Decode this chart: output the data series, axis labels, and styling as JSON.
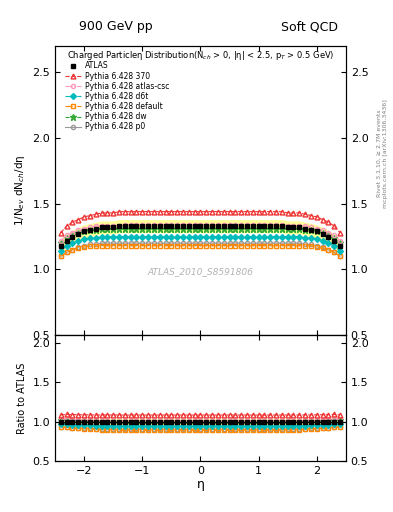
{
  "title_left": "900 GeV pp",
  "title_right": "Soft QCD",
  "right_label1": "Rivet 3.1.10, ≥ 2.7M events",
  "right_label2": "mcplots.cern.ch [arXiv:1306.3436]",
  "plot_title": "Charged Particleη Distribution(N$_{ch}$ > 0, |η| < 2.5, p$_T$ > 0.5 GeV)",
  "watermark": "ATLAS_2010_S8591806",
  "ylabel_main": "1/N$_{ev}$ dN$_{ch}$/dη",
  "ylabel_ratio": "Ratio to ATLAS",
  "xlabel": "η",
  "xlim": [
    -2.5,
    2.5
  ],
  "ylim_main": [
    0.5,
    2.7
  ],
  "ylim_ratio": [
    0.5,
    2.1
  ],
  "yticks_main": [
    0.5,
    1.0,
    1.5,
    2.0,
    2.5
  ],
  "yticks_ratio": [
    0.5,
    1.0,
    1.5,
    2.0
  ],
  "xticks": [
    -2,
    -1,
    0,
    1,
    2
  ],
  "series": {
    "ATLAS": {
      "color": "black",
      "marker": "s",
      "markersize": 3.5,
      "linestyle": "none",
      "filled": true,
      "zorder": 10
    },
    "Pythia 6.428 370": {
      "color": "#ee3333",
      "marker": "^",
      "markersize": 3.5,
      "linestyle": "--",
      "filled": false,
      "zorder": 6
    },
    "Pythia 6.428 atlas-csc": {
      "color": "#ff99bb",
      "marker": "o",
      "markersize": 3,
      "linestyle": "-.",
      "filled": false,
      "zorder": 5
    },
    "Pythia 6.428 d6t": {
      "color": "#00bbbb",
      "marker": "D",
      "markersize": 3,
      "linestyle": "-.",
      "filled": true,
      "zorder": 4
    },
    "Pythia 6.428 default": {
      "color": "#ff8800",
      "marker": "s",
      "markersize": 3,
      "linestyle": "-.",
      "filled": false,
      "zorder": 3
    },
    "Pythia 6.428 dw": {
      "color": "#33aa33",
      "marker": "*",
      "markersize": 4.5,
      "linestyle": "--",
      "filled": true,
      "zorder": 2
    },
    "Pythia 6.428 p0": {
      "color": "#999999",
      "marker": "o",
      "markersize": 3,
      "linestyle": "-",
      "filled": false,
      "zorder": 1
    }
  },
  "eta_atlas": [
    -2.4,
    -2.3,
    -2.2,
    -2.1,
    -2.0,
    -1.9,
    -1.8,
    -1.7,
    -1.6,
    -1.5,
    -1.4,
    -1.3,
    -1.2,
    -1.1,
    -1.0,
    -0.9,
    -0.8,
    -0.7,
    -0.6,
    -0.5,
    -0.4,
    -0.3,
    -0.2,
    -0.1,
    0.0,
    0.1,
    0.2,
    0.3,
    0.4,
    0.5,
    0.6,
    0.7,
    0.8,
    0.9,
    1.0,
    1.1,
    1.2,
    1.3,
    1.4,
    1.5,
    1.6,
    1.7,
    1.8,
    1.9,
    2.0,
    2.1,
    2.2,
    2.3,
    2.4
  ],
  "val_atlas": [
    1.18,
    1.22,
    1.25,
    1.27,
    1.29,
    1.3,
    1.31,
    1.32,
    1.32,
    1.32,
    1.33,
    1.33,
    1.33,
    1.33,
    1.33,
    1.33,
    1.33,
    1.33,
    1.33,
    1.33,
    1.33,
    1.33,
    1.33,
    1.33,
    1.33,
    1.33,
    1.33,
    1.33,
    1.33,
    1.33,
    1.33,
    1.33,
    1.33,
    1.33,
    1.33,
    1.33,
    1.33,
    1.33,
    1.33,
    1.32,
    1.32,
    1.32,
    1.31,
    1.3,
    1.29,
    1.27,
    1.25,
    1.22,
    1.18
  ],
  "err_atlas": [
    0.05,
    0.05,
    0.05,
    0.05,
    0.05,
    0.05,
    0.05,
    0.05,
    0.05,
    0.05,
    0.05,
    0.05,
    0.05,
    0.05,
    0.05,
    0.05,
    0.05,
    0.05,
    0.05,
    0.05,
    0.05,
    0.05,
    0.05,
    0.05,
    0.05,
    0.05,
    0.05,
    0.05,
    0.05,
    0.05,
    0.05,
    0.05,
    0.05,
    0.05,
    0.05,
    0.05,
    0.05,
    0.05,
    0.05,
    0.05,
    0.05,
    0.05,
    0.05,
    0.05,
    0.05,
    0.05,
    0.05,
    0.05,
    0.05
  ],
  "val_370": [
    1.28,
    1.33,
    1.36,
    1.38,
    1.4,
    1.41,
    1.42,
    1.43,
    1.43,
    1.43,
    1.44,
    1.44,
    1.44,
    1.44,
    1.44,
    1.44,
    1.44,
    1.44,
    1.44,
    1.44,
    1.44,
    1.44,
    1.44,
    1.44,
    1.44,
    1.44,
    1.44,
    1.44,
    1.44,
    1.44,
    1.44,
    1.44,
    1.44,
    1.44,
    1.44,
    1.44,
    1.44,
    1.44,
    1.44,
    1.43,
    1.43,
    1.43,
    1.42,
    1.41,
    1.4,
    1.38,
    1.36,
    1.33,
    1.28
  ],
  "val_atlascsc": [
    1.22,
    1.26,
    1.28,
    1.3,
    1.31,
    1.32,
    1.33,
    1.33,
    1.33,
    1.33,
    1.33,
    1.34,
    1.34,
    1.34,
    1.34,
    1.34,
    1.34,
    1.34,
    1.34,
    1.34,
    1.34,
    1.34,
    1.34,
    1.34,
    1.34,
    1.34,
    1.34,
    1.34,
    1.34,
    1.34,
    1.34,
    1.34,
    1.34,
    1.34,
    1.34,
    1.34,
    1.34,
    1.34,
    1.34,
    1.33,
    1.33,
    1.33,
    1.33,
    1.32,
    1.31,
    1.3,
    1.28,
    1.26,
    1.22
  ],
  "val_d6t": [
    1.14,
    1.18,
    1.2,
    1.22,
    1.23,
    1.24,
    1.24,
    1.25,
    1.25,
    1.25,
    1.25,
    1.25,
    1.25,
    1.25,
    1.25,
    1.25,
    1.25,
    1.25,
    1.25,
    1.25,
    1.25,
    1.25,
    1.25,
    1.25,
    1.25,
    1.25,
    1.25,
    1.25,
    1.25,
    1.25,
    1.25,
    1.25,
    1.25,
    1.25,
    1.25,
    1.25,
    1.25,
    1.25,
    1.25,
    1.25,
    1.25,
    1.25,
    1.24,
    1.24,
    1.23,
    1.22,
    1.2,
    1.18,
    1.14
  ],
  "val_default": [
    1.1,
    1.13,
    1.15,
    1.16,
    1.17,
    1.18,
    1.18,
    1.18,
    1.18,
    1.18,
    1.18,
    1.18,
    1.18,
    1.18,
    1.18,
    1.18,
    1.18,
    1.18,
    1.18,
    1.18,
    1.18,
    1.18,
    1.18,
    1.18,
    1.18,
    1.18,
    1.18,
    1.18,
    1.18,
    1.18,
    1.18,
    1.18,
    1.18,
    1.18,
    1.18,
    1.18,
    1.18,
    1.18,
    1.18,
    1.18,
    1.18,
    1.18,
    1.18,
    1.18,
    1.17,
    1.16,
    1.15,
    1.13,
    1.1
  ],
  "val_dw": [
    1.2,
    1.24,
    1.26,
    1.28,
    1.29,
    1.3,
    1.3,
    1.31,
    1.31,
    1.31,
    1.31,
    1.31,
    1.31,
    1.31,
    1.31,
    1.31,
    1.31,
    1.31,
    1.31,
    1.31,
    1.31,
    1.31,
    1.31,
    1.31,
    1.31,
    1.31,
    1.31,
    1.31,
    1.31,
    1.31,
    1.31,
    1.31,
    1.31,
    1.31,
    1.31,
    1.31,
    1.31,
    1.31,
    1.31,
    1.31,
    1.31,
    1.31,
    1.3,
    1.3,
    1.29,
    1.28,
    1.26,
    1.24,
    1.2
  ],
  "val_p0": [
    1.1,
    1.13,
    1.15,
    1.17,
    1.18,
    1.19,
    1.19,
    1.2,
    1.2,
    1.2,
    1.2,
    1.2,
    1.2,
    1.2,
    1.2,
    1.2,
    1.2,
    1.2,
    1.2,
    1.2,
    1.2,
    1.2,
    1.2,
    1.2,
    1.2,
    1.2,
    1.2,
    1.2,
    1.2,
    1.2,
    1.2,
    1.2,
    1.2,
    1.2,
    1.2,
    1.2,
    1.2,
    1.2,
    1.2,
    1.2,
    1.2,
    1.2,
    1.19,
    1.19,
    1.18,
    1.17,
    1.15,
    1.13,
    1.1
  ],
  "band_color": "#ffff99",
  "bg_color": "white"
}
